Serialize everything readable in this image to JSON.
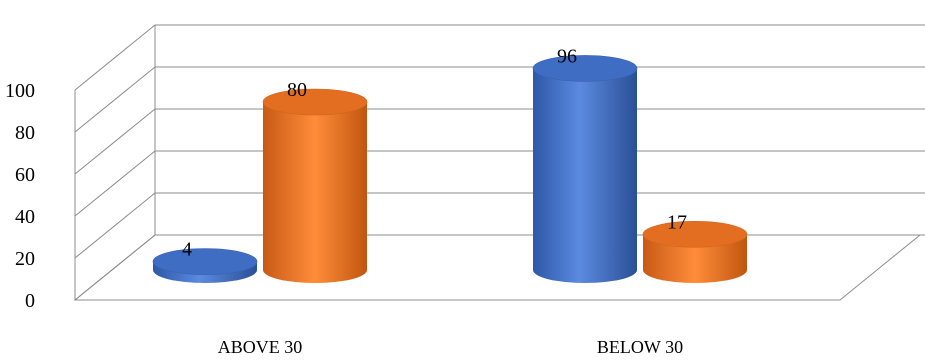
{
  "chart_data": {
    "type": "bar",
    "style": "3d-cylinder",
    "categories": [
      "ABOVE 30",
      "BELOW 30"
    ],
    "series": [
      {
        "values": [
          4,
          96
        ],
        "color": "#4472C4"
      },
      {
        "values": [
          80,
          17
        ],
        "color": "#ED7D31"
      }
    ],
    "data_labels": true,
    "ylim": [
      0,
      100
    ],
    "ytick_step": 20,
    "y_ticks": [
      "0",
      "20",
      "40",
      "60",
      "80",
      "100"
    ],
    "grid": true,
    "legend": "none"
  }
}
